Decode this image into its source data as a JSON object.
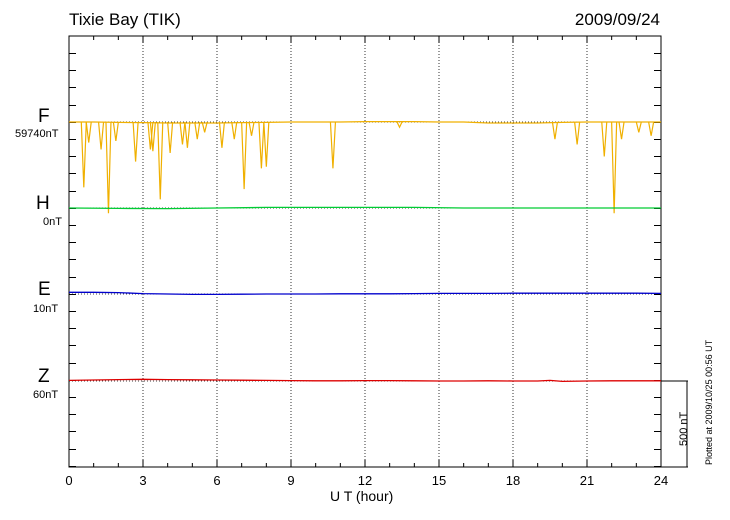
{
  "title": "Tixie Bay (TIK)",
  "date": "2009/09/24",
  "xlabel": "U T (hour)",
  "plotted_note": "Plotted at 2009/10/25 00:56 UT",
  "scale_label": "500 nT",
  "colors": {
    "F": "#f0b000",
    "H": "#00cc33",
    "E": "#0000cc",
    "Z": "#dd0000"
  },
  "chart_data": {
    "type": "line",
    "title": "Tixie Bay (TIK)",
    "xlabel": "U T (hour)",
    "ylabel": "",
    "xlim": [
      0,
      24
    ],
    "xticks": [
      "0",
      "3",
      "6",
      "9",
      "12",
      "15",
      "18",
      "21",
      "24"
    ],
    "grid": "dotted vertical lines every 3 hours",
    "scale_bar_nT": 500,
    "series": [
      {
        "name": "F",
        "baseline_label": "59740nT",
        "x": [
          0,
          1,
          2,
          3,
          4,
          5,
          6,
          7,
          8,
          9,
          10,
          11,
          12,
          13,
          14,
          15,
          16,
          17,
          18,
          19,
          20,
          21,
          22,
          23,
          24
        ],
        "y": [
          0,
          0,
          -2,
          -3,
          -5,
          -5,
          -5,
          -3,
          -2,
          0,
          0,
          0,
          2,
          2,
          2,
          0,
          0,
          -5,
          -5,
          -5,
          -2,
          0,
          0,
          0,
          0
        ],
        "spikes": [
          [
            0.6,
            -380
          ],
          [
            0.8,
            -120
          ],
          [
            1.3,
            -160
          ],
          [
            1.6,
            -530
          ],
          [
            1.9,
            -110
          ],
          [
            2.7,
            -230
          ],
          [
            3.3,
            -160
          ],
          [
            3.4,
            -170
          ],
          [
            3.7,
            -450
          ],
          [
            4.1,
            -180
          ],
          [
            4.6,
            -130
          ],
          [
            4.8,
            -150
          ],
          [
            5.2,
            -100
          ],
          [
            5.5,
            -60
          ],
          [
            6.2,
            -150
          ],
          [
            6.7,
            -100
          ],
          [
            7.1,
            -390
          ],
          [
            7.4,
            -80
          ],
          [
            7.8,
            -270
          ],
          [
            8.0,
            -260
          ],
          [
            10.7,
            -270
          ],
          [
            13.4,
            -30
          ],
          [
            19.7,
            -100
          ],
          [
            20.6,
            -130
          ],
          [
            21.7,
            -200
          ],
          [
            22.1,
            -530
          ],
          [
            22.4,
            -100
          ],
          [
            23.1,
            -60
          ],
          [
            23.6,
            -80
          ]
        ]
      },
      {
        "name": "H",
        "baseline_label": "0nT",
        "x": [
          0,
          2,
          4,
          6,
          8,
          10,
          12,
          14,
          16,
          18,
          20,
          22,
          24
        ],
        "y": [
          0,
          -2,
          -3,
          0,
          3,
          3,
          3,
          3,
          0,
          0,
          0,
          0,
          0
        ]
      },
      {
        "name": "E",
        "baseline_label": "10nT",
        "x": [
          0,
          1,
          2,
          3,
          4,
          5,
          6,
          7,
          8,
          9,
          10,
          11,
          12,
          13,
          14,
          15,
          16,
          17,
          18,
          19,
          20,
          21,
          22,
          23,
          24
        ],
        "y": [
          8,
          8,
          7,
          2,
          0,
          -2,
          -2,
          -1,
          0,
          0,
          0,
          1,
          1,
          1,
          2,
          3,
          3,
          3,
          4,
          4,
          4,
          4,
          4,
          4,
          3
        ]
      },
      {
        "name": "Z",
        "baseline_label": "60nT",
        "x": [
          0,
          1,
          2,
          3,
          4,
          5,
          6,
          7,
          8,
          9,
          10,
          11,
          12,
          13,
          14,
          15,
          16,
          17,
          18,
          19,
          19.5,
          20,
          21,
          22,
          23,
          24
        ],
        "y": [
          3,
          5,
          7,
          8,
          7,
          6,
          5,
          4,
          3,
          2,
          1,
          1,
          2,
          2,
          1,
          0,
          0,
          1,
          0,
          0,
          3,
          -2,
          0,
          1,
          1,
          1
        ]
      }
    ]
  }
}
